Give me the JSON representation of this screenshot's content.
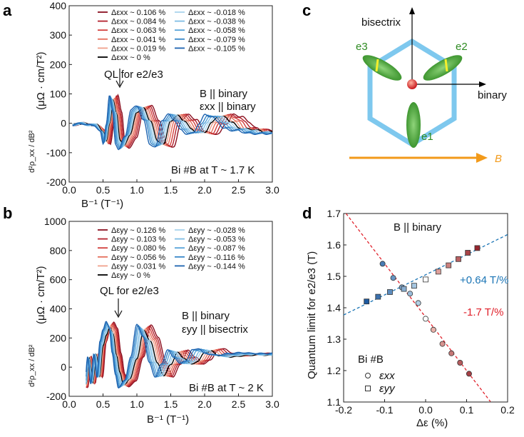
{
  "panels": {
    "a": {
      "letter": "a",
      "ylabel_main": "(μΩ · cm/T²)",
      "ylabel_frac": "d²ρ_xx / dB²",
      "xlabel": "B⁻¹ (T⁻¹)",
      "note1": "B || binary",
      "note2": "εxx || binary",
      "note3": "Bi #B at T ~ 1.7 K",
      "ql": "QL for e2/e3"
    },
    "b": {
      "letter": "b",
      "ylabel_main": "(μΩ · cm/T²)",
      "ylabel_frac": "d²ρ_xx / dB²",
      "xlabel": "B⁻¹ (T⁻¹)",
      "note1": "B || binary",
      "note2": "εyy || bisectrix",
      "note3": "Bi #B at T ~ 2 K",
      "ql": "QL for e2/e3"
    },
    "c": {
      "letter": "c",
      "bisectrix": "bisectrix",
      "binary": "binary",
      "e1": "e1",
      "e2": "e2",
      "e3": "e3",
      "B": "B",
      "colors": {
        "hex": "#7ec8ee",
        "pocket": "#3c9a2c",
        "arrow": "#f29a1a",
        "center": "#d9261c",
        "bar": "#f5ef2a"
      }
    },
    "d": {
      "letter": "d",
      "ylabel": "Quantum limit for e2/e3 (T)",
      "xlabel": "Δε (%)",
      "title": "B || binary",
      "sample": "Bi #B",
      "leg_xx": "εxx",
      "leg_yy": "εyy",
      "slope_pos": "+0.64 T/%",
      "slope_neg": "-1.7 T/%"
    }
  },
  "chart_data": [
    {
      "type": "line",
      "panel": "a",
      "xlabel": "B⁻¹ (T⁻¹)",
      "ylabel": "d²ρxx/dB² (μΩ · cm/T²)",
      "xlim": [
        0.0,
        3.0
      ],
      "ylim": [
        -200,
        400
      ],
      "xticks": [
        "0.0",
        "0.5",
        "1.0",
        "1.5",
        "2.0",
        "2.5",
        "3.0"
      ],
      "yticks": [
        "-200",
        "-100",
        "0",
        "100",
        "200",
        "300",
        "400"
      ],
      "legend_position": "top-left",
      "series": [
        {
          "name": "Δεxx ~ 0.106 %",
          "strain": 0.106,
          "color": "#8b0f1f"
        },
        {
          "name": "Δεxx ~ 0.084 %",
          "strain": 0.084,
          "color": "#b3212c"
        },
        {
          "name": "Δεxx ~ 0.063 %",
          "strain": 0.063,
          "color": "#d23d3b"
        },
        {
          "name": "Δεxx ~ 0.041 %",
          "strain": 0.041,
          "color": "#e56e5b"
        },
        {
          "name": "Δεxx ~ 0.019 %",
          "strain": 0.019,
          "color": "#f0a08c"
        },
        {
          "name": "Δεxx ~ 0 %",
          "strain": 0.0,
          "color": "#000000"
        },
        {
          "name": "Δεxx ~ -0.018 %",
          "strain": -0.018,
          "color": "#a9d3ec"
        },
        {
          "name": "Δεxx ~ -0.038 %",
          "strain": -0.038,
          "color": "#7fbde4"
        },
        {
          "name": "Δεxx ~ -0.058 %",
          "strain": -0.058,
          "color": "#56a3d9"
        },
        {
          "name": "Δεxx ~ -0.079 %",
          "strain": -0.079,
          "color": "#3686c8"
        },
        {
          "name": "Δεxx ~ -0.105 %",
          "strain": -0.105,
          "color": "#1d63b0"
        }
      ],
      "reference_shape": {
        "x": [
          0.05,
          0.2,
          0.3,
          0.4,
          0.5,
          0.55,
          0.6,
          0.65,
          0.7,
          0.75,
          0.8,
          0.9,
          1.0,
          1.1,
          1.2,
          1.3,
          1.4,
          1.5,
          1.6,
          1.7,
          1.8,
          1.9,
          2.0,
          2.1,
          2.2,
          2.3,
          2.4,
          2.5,
          2.6,
          2.7,
          2.8,
          2.9,
          3.0
        ],
        "y": [
          -5,
          0,
          -5,
          -5,
          -25,
          -60,
          0,
          80,
          35,
          -60,
          -75,
          -40,
          40,
          50,
          10,
          -60,
          -70,
          10,
          25,
          10,
          -20,
          -30,
          -30,
          0,
          25,
          20,
          5,
          -15,
          -20,
          -20,
          -25,
          -30,
          -30
        ]
      }
    },
    {
      "type": "line",
      "panel": "b",
      "xlabel": "B⁻¹ (T⁻¹)",
      "ylabel": "d²ρxx/dB² (μΩ · cm/T²)",
      "xlim": [
        0.0,
        3.0
      ],
      "ylim": [
        -200,
        1000
      ],
      "xticks": [
        "0.0",
        "0.5",
        "1.0",
        "1.5",
        "2.0",
        "2.5",
        "3.0"
      ],
      "yticks": [
        "-200",
        "0",
        "200",
        "400",
        "600",
        "800",
        "1000"
      ],
      "legend_position": "top-left",
      "series": [
        {
          "name": "Δεyy ~ 0.126 %",
          "strain": 0.126,
          "color": "#8b0f1f"
        },
        {
          "name": "Δεyy ~ 0.103 %",
          "strain": 0.103,
          "color": "#b3212c"
        },
        {
          "name": "Δεyy ~ 0.080 %",
          "strain": 0.08,
          "color": "#d23d3b"
        },
        {
          "name": "Δεyy ~ 0.056 %",
          "strain": 0.056,
          "color": "#e56e5b"
        },
        {
          "name": "Δεyy ~ 0.031 %",
          "strain": 0.031,
          "color": "#f0a08c"
        },
        {
          "name": "Δεyy ~ 0 %",
          "strain": 0.0,
          "color": "#000000"
        },
        {
          "name": "Δεyy ~ -0.028 %",
          "strain": -0.028,
          "color": "#a9d3ec"
        },
        {
          "name": "Δεyy ~ -0.053 %",
          "strain": -0.053,
          "color": "#7fbde4"
        },
        {
          "name": "Δεyy ~ -0.087 %",
          "strain": -0.087,
          "color": "#56a3d9"
        },
        {
          "name": "Δεyy ~ -0.116 %",
          "strain": -0.116,
          "color": "#3686c8"
        },
        {
          "name": "Δεyy ~ -0.144 %",
          "strain": -0.144,
          "color": "#1d63b0"
        }
      ],
      "reference_shape": {
        "x": [
          0.25,
          0.3,
          0.35,
          0.4,
          0.45,
          0.5,
          0.55,
          0.6,
          0.65,
          0.7,
          0.75,
          0.8,
          0.9,
          1.0,
          1.1,
          1.2,
          1.3,
          1.4,
          1.5,
          1.6,
          1.7,
          1.8,
          1.9,
          2.0,
          2.1,
          2.2,
          2.4,
          2.6,
          2.8,
          3.0
        ],
        "y": [
          -120,
          60,
          -100,
          80,
          -60,
          150,
          220,
          270,
          230,
          80,
          -40,
          -120,
          -80,
          60,
          250,
          180,
          30,
          -60,
          20,
          100,
          60,
          20,
          40,
          100,
          110,
          80,
          70,
          80,
          85,
          80
        ]
      }
    },
    {
      "type": "scatter",
      "panel": "d",
      "title": "B || binary",
      "xlabel": "Δε (%)",
      "ylabel": "Quantum limit for e2/e3 (T)",
      "xlim": [
        -0.2,
        0.2
      ],
      "ylim": [
        1.1,
        1.7
      ],
      "xticks": [
        "-0.2",
        "-0.1",
        "0.0",
        "0.1",
        "0.2"
      ],
      "yticks": [
        "1.1",
        "1.2",
        "1.3",
        "1.4",
        "1.5",
        "1.6",
        "1.7"
      ],
      "series": [
        {
          "name": "εxx",
          "marker": "circle",
          "x": [
            -0.105,
            -0.079,
            -0.058,
            -0.038,
            -0.018,
            0.0,
            0.019,
            0.041,
            0.063,
            0.084,
            0.106
          ],
          "y": [
            1.54,
            1.495,
            1.465,
            1.445,
            1.415,
            1.365,
            1.33,
            1.285,
            1.255,
            1.225,
            1.19
          ]
        },
        {
          "name": "εyy",
          "marker": "square",
          "x": [
            -0.144,
            -0.116,
            -0.087,
            -0.053,
            -0.028,
            0.0,
            0.031,
            0.056,
            0.08,
            0.103,
            0.126
          ],
          "y": [
            1.42,
            1.435,
            1.45,
            1.46,
            1.47,
            1.49,
            1.515,
            1.535,
            1.555,
            1.575,
            1.59
          ]
        }
      ],
      "fits": [
        {
          "label": "+0.64 T/%",
          "slope": 0.64,
          "intercept": 1.505,
          "color": "#1a74b5"
        },
        {
          "label": "-1.7 T/%",
          "slope": -1.7,
          "intercept": 1.37,
          "color": "#e0202a"
        }
      ]
    }
  ]
}
